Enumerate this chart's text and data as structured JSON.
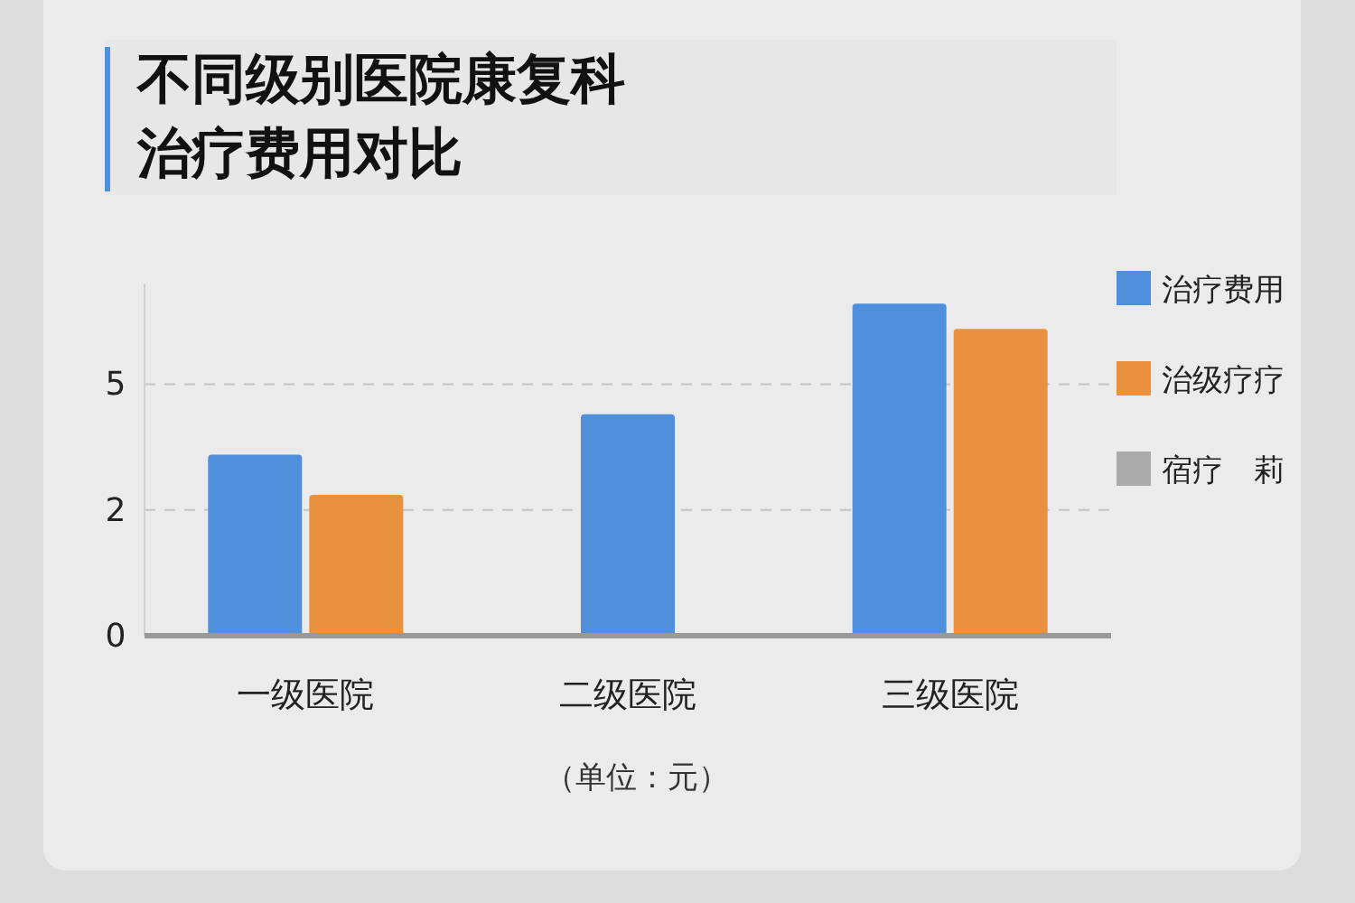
{
  "chart_data": {
    "type": "bar",
    "title": "不同级别医院康复科治疗费用对比",
    "annotations": [
      "（单位：元）"
    ],
    "categories": [
      "一级医院",
      "二级医院",
      "三级医院"
    ],
    "series": [
      {
        "name": "治疗费用",
        "color": "#4f8fdc",
        "values": [
          3.6,
          4.4,
          6.6
        ]
      },
      {
        "name": "治级疗疗",
        "color": "#ea9140",
        "values": [
          2.8,
          null,
          6.1
        ]
      },
      {
        "name": "宿疗　莉",
        "color": "#aaaaaa",
        "values": [
          null,
          null,
          null
        ]
      }
    ],
    "ylim": [
      0,
      7
    ],
    "yticks": [
      0,
      {
        "value": 2.5,
        "label": "2"
      },
      5
    ],
    "grid": "y",
    "legend": "right"
  }
}
